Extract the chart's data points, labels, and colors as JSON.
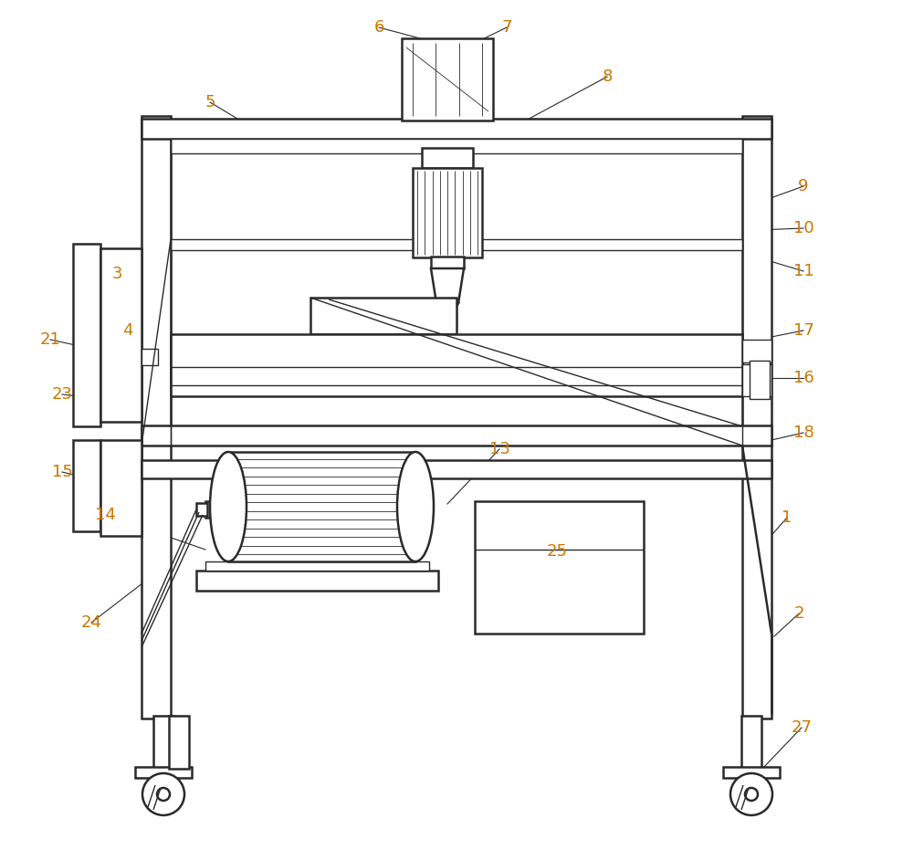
{
  "bg_color": "#ffffff",
  "line_color": "#2a2a2a",
  "label_color": "#cc7700",
  "fig_width": 10.0,
  "fig_height": 9.42,
  "lw_main": 1.8,
  "lw_thin": 1.0,
  "lw_hatch": 0.6,
  "label_fs": 13
}
